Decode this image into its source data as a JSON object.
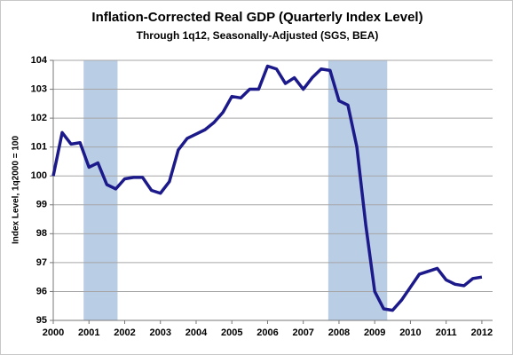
{
  "chart_data": {
    "type": "line",
    "title": "Inflation-Corrected Real GDP (Quarterly Index Level)",
    "subtitle": "Through 1q12, Seasonally-Adjusted (SGS, BEA)",
    "y_label": "Index Level, 1q2000 = 100",
    "x": [
      2000,
      2000.25,
      2000.5,
      2000.75,
      2001,
      2001.25,
      2001.5,
      2001.75,
      2002,
      2002.25,
      2002.5,
      2002.75,
      2003,
      2003.25,
      2003.5,
      2003.75,
      2004,
      2004.25,
      2004.5,
      2004.75,
      2005,
      2005.25,
      2005.5,
      2005.75,
      2006,
      2006.25,
      2006.5,
      2006.75,
      2007,
      2007.25,
      2007.5,
      2007.75,
      2008,
      2008.25,
      2008.5,
      2008.75,
      2009,
      2009.25,
      2009.5,
      2009.75,
      2010,
      2010.25,
      2010.5,
      2010.75,
      2011,
      2011.25,
      2011.5,
      2011.75,
      2012
    ],
    "series": [
      {
        "name": "Real GDP",
        "color": "#1c1a8a",
        "values": [
          100.0,
          101.5,
          101.1,
          101.15,
          100.3,
          100.45,
          99.7,
          99.55,
          99.9,
          99.95,
          99.95,
          99.5,
          99.4,
          99.8,
          100.9,
          101.3,
          101.45,
          101.6,
          101.85,
          102.2,
          102.75,
          102.7,
          103.0,
          103.0,
          103.8,
          103.7,
          103.2,
          103.4,
          103.0,
          103.4,
          103.7,
          103.65,
          102.6,
          102.45,
          101.0,
          98.3,
          96.0,
          95.4,
          95.35,
          95.7,
          96.15,
          96.6,
          96.7,
          96.8,
          96.4,
          96.25,
          96.2,
          96.45,
          96.5
        ]
      }
    ],
    "shaded_periods": [
      [
        2000.85,
        2001.8
      ],
      [
        2007.7,
        2009.35
      ]
    ],
    "shade_color": "#b9cde5",
    "xlim": [
      2000,
      2012.3
    ],
    "xticks": [
      2000,
      2001,
      2002,
      2003,
      2004,
      2005,
      2006,
      2007,
      2008,
      2009,
      2010,
      2011,
      2012
    ],
    "ylim": [
      95,
      104
    ],
    "yticks": [
      95,
      96,
      97,
      98,
      99,
      100,
      101,
      102,
      103,
      104
    ],
    "grid": true
  }
}
